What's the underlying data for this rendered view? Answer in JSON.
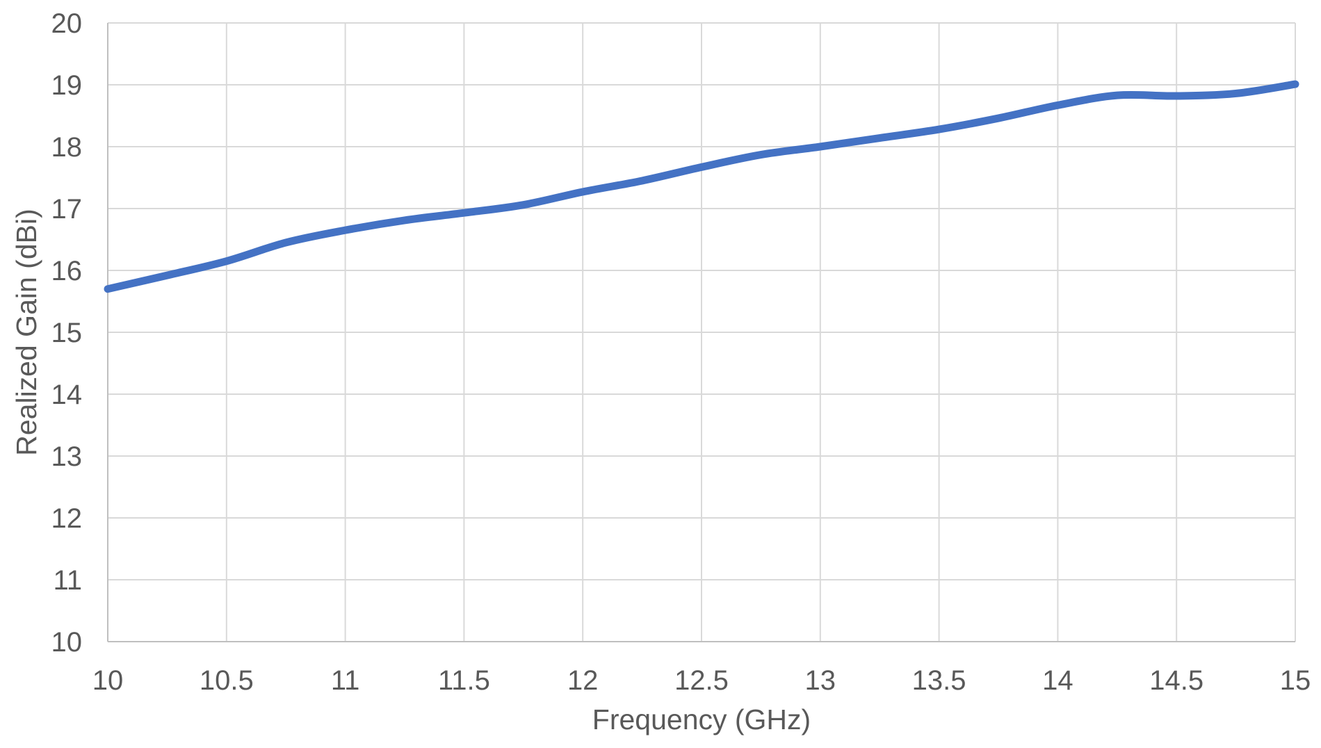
{
  "chart_data": {
    "type": "line",
    "title": "",
    "xlabel": "Frequency (GHz)",
    "ylabel": "Realized Gain (dBi)",
    "xlim": [
      10,
      15
    ],
    "ylim": [
      10,
      20
    ],
    "grid": true,
    "legend": false,
    "x_ticks": [
      10,
      10.5,
      11,
      11.5,
      12,
      12.5,
      13,
      13.5,
      14,
      14.5,
      15
    ],
    "x_tick_labels": [
      "10",
      "10.5",
      "11",
      "11.5",
      "12",
      "12.5",
      "13",
      "13.5",
      "14",
      "14.5",
      "15"
    ],
    "y_ticks": [
      10,
      11,
      12,
      13,
      14,
      15,
      16,
      17,
      18,
      19,
      20
    ],
    "y_tick_labels": [
      "10",
      "11",
      "12",
      "13",
      "14",
      "15",
      "16",
      "17",
      "18",
      "19",
      "20"
    ],
    "x": [
      10.0,
      10.25,
      10.5,
      10.75,
      11.0,
      11.25,
      11.5,
      11.75,
      12.0,
      12.25,
      12.5,
      12.75,
      13.0,
      13.25,
      13.5,
      13.75,
      14.0,
      14.25,
      14.5,
      14.75,
      15.0
    ],
    "y": [
      15.7,
      15.92,
      16.15,
      16.45,
      16.65,
      16.81,
      16.93,
      17.06,
      17.27,
      17.45,
      17.67,
      17.87,
      18.0,
      18.14,
      18.28,
      18.46,
      18.67,
      18.83,
      18.82,
      18.86,
      19.01
    ],
    "line_color": "#4472C4",
    "gridline_color": "#D9D9D9",
    "axis_line_color": "#BFBFBF",
    "text_color": "#595959",
    "line_width": 11
  }
}
